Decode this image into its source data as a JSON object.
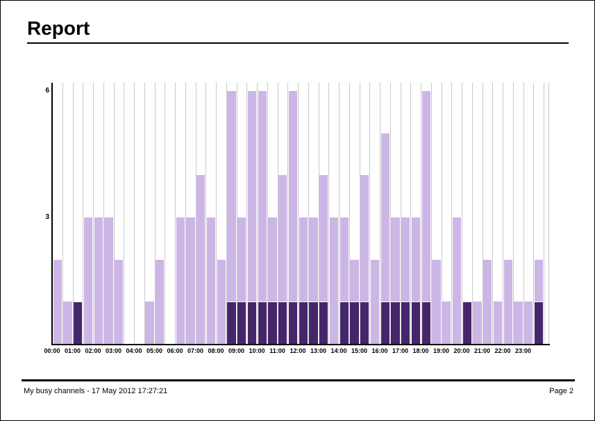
{
  "page": {
    "title": "Report",
    "footer_left": "My busy channels - 17 May 2012 17:27:21",
    "footer_right": "Page 2"
  },
  "chart_data": {
    "type": "bar",
    "stacked": true,
    "title": "",
    "xlabel": "",
    "ylabel": "",
    "ylim": [
      0,
      6.2
    ],
    "y_ticks": [
      3,
      6
    ],
    "grid": "vertical-half-hour",
    "legend": "none",
    "bar_interval_minutes": 30,
    "x_hour_labels": [
      "00:00",
      "01:00",
      "02:00",
      "03:00",
      "04:00",
      "05:00",
      "06:00",
      "07:00",
      "08:00",
      "09:00",
      "10:00",
      "11:00",
      "12:00",
      "13:00",
      "14:00",
      "15:00",
      "16:00",
      "17:00",
      "18:00",
      "19:00",
      "20:00",
      "21:00",
      "22:00",
      "23:00"
    ],
    "categories": [
      "00:00",
      "00:30",
      "01:00",
      "01:30",
      "02:00",
      "02:30",
      "03:00",
      "03:30",
      "04:00",
      "04:30",
      "05:00",
      "05:30",
      "06:00",
      "06:30",
      "07:00",
      "07:30",
      "08:00",
      "08:30",
      "09:00",
      "09:30",
      "10:00",
      "10:30",
      "11:00",
      "11:30",
      "12:00",
      "12:30",
      "13:00",
      "13:30",
      "14:00",
      "14:30",
      "15:00",
      "15:30",
      "16:00",
      "16:30",
      "17:00",
      "17:30",
      "18:00",
      "18:30",
      "19:00",
      "19:30",
      "20:00",
      "20:30",
      "21:00",
      "21:30",
      "22:00",
      "22:30",
      "23:00",
      "23:30"
    ],
    "series": [
      {
        "name": "dark-segment",
        "color": "#46266b",
        "values": [
          0,
          0,
          1,
          0,
          0,
          0,
          0,
          0,
          0,
          0,
          0,
          0,
          0,
          0,
          0,
          0,
          0,
          1,
          1,
          1,
          1,
          1,
          1,
          1,
          1,
          1,
          1,
          0,
          1,
          1,
          1,
          0,
          1,
          1,
          1,
          1,
          1,
          0,
          0,
          0,
          1,
          0,
          0,
          0,
          0,
          0,
          0,
          1
        ]
      },
      {
        "name": "light-segment",
        "color": "#ccb6e6",
        "values": [
          2,
          1,
          0,
          3,
          3,
          3,
          2,
          0,
          0,
          1,
          2,
          0,
          3,
          3,
          4,
          3,
          2,
          5,
          2,
          5,
          5,
          2,
          3,
          5,
          2,
          2,
          3,
          3,
          2,
          1,
          3,
          2,
          4,
          2,
          2,
          2,
          5,
          2,
          1,
          3,
          0,
          1,
          2,
          1,
          2,
          1,
          1,
          1
        ]
      }
    ],
    "totals": [
      2,
      1,
      1,
      3,
      3,
      3,
      2,
      0,
      0,
      1,
      2,
      0,
      3,
      3,
      4,
      3,
      2,
      6,
      3,
      6,
      6,
      3,
      4,
      6,
      3,
      3,
      4,
      3,
      3,
      2,
      4,
      2,
      5,
      3,
      3,
      3,
      6,
      2,
      1,
      3,
      1,
      1,
      2,
      1,
      2,
      1,
      1,
      2
    ],
    "colors": {
      "light": "#ccb6e6",
      "dark": "#46266b",
      "gridline": "#c9c9c9",
      "axis": "#000000"
    }
  }
}
